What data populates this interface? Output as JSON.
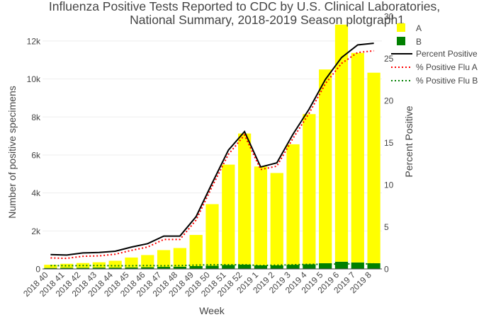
{
  "chart_data": {
    "type": "bar",
    "title_line1": "Influenza Positive Tests Reported to CDC by U.S. Clinical Laboratories,",
    "title_line2": "National Summary, 2018-2019 Season plotgraph1",
    "xlabel": "Week",
    "ylabel": "Number of positive specimens",
    "y2label": "Percent Positive",
    "categories": [
      "2018 40",
      "2018 41",
      "2018 42",
      "2018 43",
      "2018 44",
      "2018 45",
      "2018 46",
      "2018 47",
      "2018 48",
      "2018 49",
      "2018 50",
      "2018 51",
      "2018 52",
      "2019 1",
      "2019 2",
      "2019 3",
      "2019 4",
      "2019 5",
      "2019 6",
      "2019 7",
      "2019 8"
    ],
    "ylim": [
      0,
      13300
    ],
    "y2lim": [
      0,
      30
    ],
    "yticks": [
      0,
      2000,
      4000,
      6000,
      8000,
      10000,
      12000
    ],
    "ytick_labels": [
      "0",
      "2k",
      "4k",
      "6k",
      "8k",
      "10k",
      "12k"
    ],
    "y2ticks": [
      0,
      5,
      10,
      15,
      20,
      25,
      30
    ],
    "y2tick_labels": [
      "0",
      "5",
      "10",
      "15",
      "20",
      "25",
      "30"
    ],
    "grid": true,
    "legend_position": "top-right",
    "series": [
      {
        "name": "A",
        "kind": "bar",
        "color": "#ffff00",
        "values": [
          170,
          210,
          250,
          280,
          360,
          520,
          640,
          880,
          980,
          1640,
          3240,
          5280,
          6900,
          5200,
          4860,
          6340,
          7900,
          10200,
          12480,
          11030,
          10030
        ]
      },
      {
        "name": "B",
        "kind": "bar",
        "color": "#008000",
        "values": [
          50,
          60,
          60,
          70,
          70,
          80,
          90,
          110,
          120,
          150,
          170,
          210,
          230,
          190,
          190,
          220,
          250,
          300,
          380,
          340,
          300
        ]
      }
    ],
    "line_series": [
      {
        "name": "Percent Positive",
        "color": "#000000",
        "dash": "solid",
        "values": [
          1.7,
          1.65,
          1.9,
          1.95,
          2.1,
          2.6,
          3.0,
          3.9,
          3.9,
          6.2,
          10.2,
          14.1,
          16.3,
          12.1,
          12.6,
          16.0,
          19.0,
          22.5,
          25.1,
          26.6,
          26.8
        ]
      },
      {
        "name": "% Positive Flu A",
        "color": "#ff0000",
        "dash": "dotted",
        "values": [
          1.3,
          1.25,
          1.5,
          1.55,
          1.75,
          2.2,
          2.6,
          3.5,
          3.5,
          5.8,
          9.8,
          13.6,
          15.9,
          11.8,
          12.2,
          15.5,
          18.5,
          22.0,
          24.4,
          25.7,
          25.9
        ]
      },
      {
        "name": "% Positive Flu B",
        "color": "#008000",
        "dash": "dotted",
        "values": [
          0.4,
          0.38,
          0.4,
          0.4,
          0.38,
          0.38,
          0.4,
          0.38,
          0.4,
          0.45,
          0.5,
          0.5,
          0.5,
          0.4,
          0.45,
          0.5,
          0.55,
          0.55,
          0.6,
          0.6,
          0.6
        ]
      }
    ]
  }
}
